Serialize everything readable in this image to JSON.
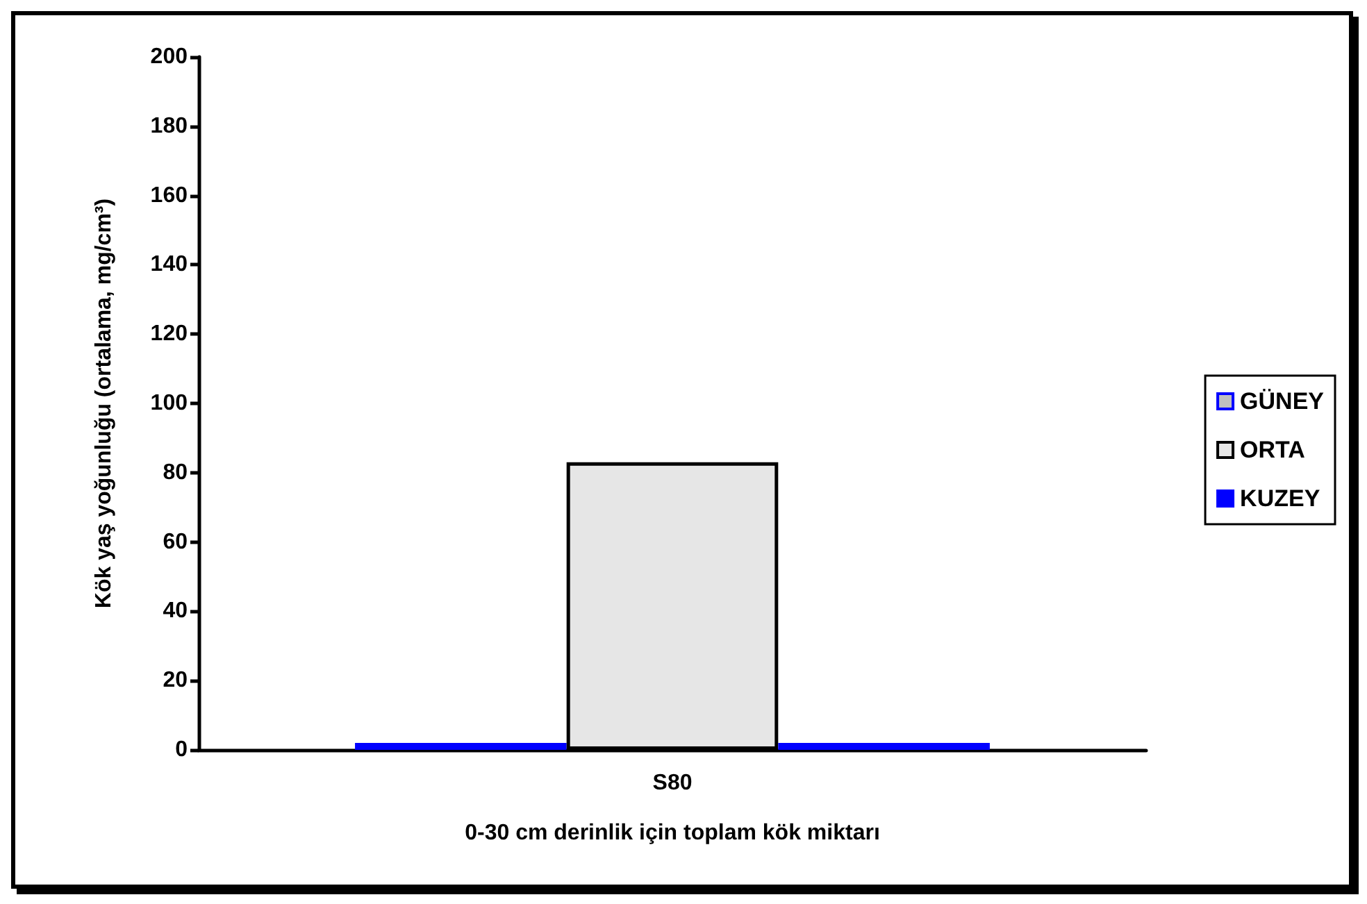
{
  "chart_data": {
    "type": "bar",
    "xlabel": "0-30 cm derinlik için toplam kök miktarı",
    "ylabel": "Kök yaş yoğunluğu (ortalama, mg/cm³)",
    "categories": [
      "S80"
    ],
    "series": [
      {
        "name": "GÜNEY",
        "color": "#c0c0c0",
        "values": [
          2
        ]
      },
      {
        "name": "ORTA",
        "color": "#e6e6e6",
        "values": [
          83
        ]
      },
      {
        "name": "KUZEY",
        "color": "#0000ff",
        "values": [
          2
        ]
      }
    ],
    "ylim": [
      0,
      200
    ],
    "yticks": [
      0,
      20,
      40,
      60,
      80,
      100,
      120,
      140,
      160,
      180,
      200
    ],
    "grid": false,
    "legend": "right"
  }
}
